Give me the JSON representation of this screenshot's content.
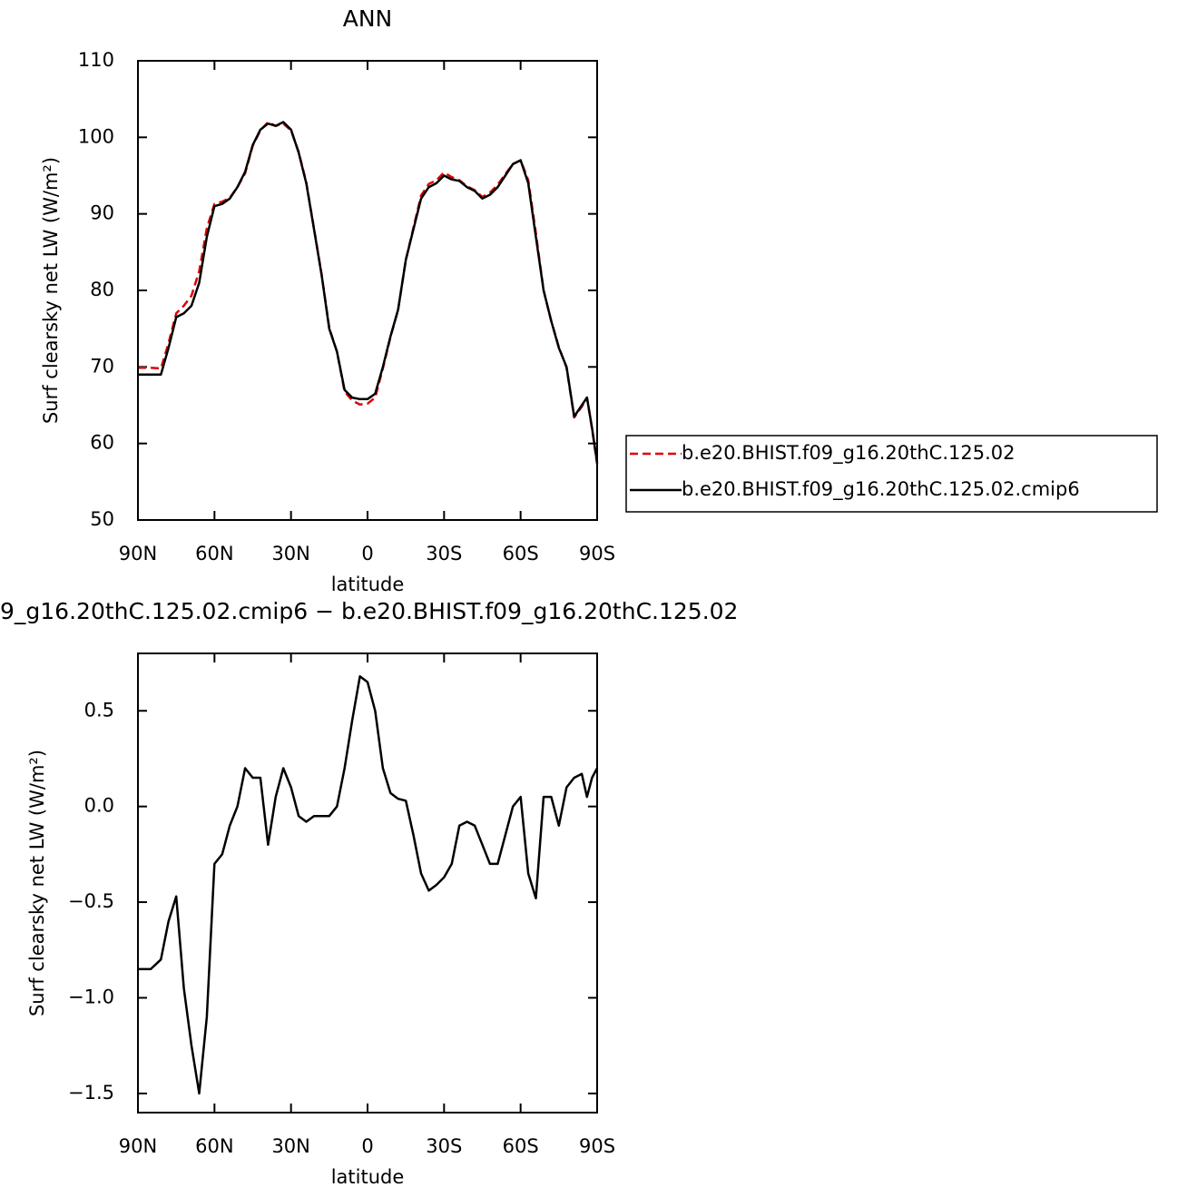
{
  "chart_data": [
    {
      "type": "line",
      "title": "ANN",
      "xlabel": "latitude",
      "ylabel": "Surf clearsky net LW (W/m²)",
      "x": [
        90,
        85,
        81,
        78,
        75,
        72,
        69,
        66,
        63,
        60,
        57,
        54,
        51,
        48,
        45,
        42,
        39,
        36,
        33,
        30,
        27,
        24,
        21,
        18,
        15,
        12,
        9,
        6,
        3,
        0,
        -3,
        -6,
        -9,
        -12,
        -15,
        -18,
        -21,
        -24,
        -27,
        -30,
        -33,
        -36,
        -39,
        -42,
        -45,
        -48,
        -51,
        -54,
        -57,
        -60,
        -63,
        -66,
        -69,
        -72,
        -75,
        -78,
        -81,
        -84,
        -86,
        -88,
        -90
      ],
      "xlim": [
        90,
        -90
      ],
      "xticks": [
        {
          "value": 90,
          "label": "90N"
        },
        {
          "value": 60,
          "label": "60N"
        },
        {
          "value": 30,
          "label": "30N"
        },
        0,
        {
          "value": -30,
          "label": "30S"
        },
        {
          "value": -60,
          "label": "60S"
        },
        {
          "value": -90,
          "label": "90S"
        }
      ],
      "ylim": [
        50,
        110
      ],
      "yticks": [
        50,
        60,
        70,
        80,
        90,
        100,
        110
      ],
      "legend": "right",
      "series": [
        {
          "name": "b.e20.BHIST.f09_g16.20thC.125.02",
          "color": "#e00000",
          "dash": true,
          "values": [
            69.9,
            69.9,
            69.8,
            73.1,
            77.0,
            78.0,
            79.3,
            82.5,
            88.1,
            91.3,
            91.6,
            92.1,
            93.5,
            95.3,
            98.9,
            100.9,
            102.0,
            101.5,
            101.8,
            100.9,
            98.1,
            94.1,
            88.1,
            82.1,
            75.1,
            72.0,
            66.8,
            65.6,
            65.1,
            65.2,
            66.0,
            69.8,
            73.9,
            77.5,
            84.0,
            88.2,
            92.4,
            93.9,
            94.4,
            95.4,
            94.8,
            94.4,
            93.6,
            93.1,
            92.2,
            92.8,
            93.8,
            95.2,
            96.5,
            97.0,
            94.4,
            87.5,
            80.0,
            76.0,
            72.6,
            69.9,
            63.4,
            64.8,
            66.0,
            61.9,
            57.3
          ]
        },
        {
          "name": "b.e20.BHIST.f09_g16.20thC.125.02.cmip6",
          "color": "#000000",
          "dash": false,
          "values": [
            69,
            69,
            69,
            72.5,
            76.5,
            77,
            78,
            81,
            87,
            91,
            91.3,
            92,
            93.5,
            95.5,
            99,
            101,
            101.8,
            101.5,
            102,
            101,
            98,
            94,
            88,
            82,
            75,
            72,
            67,
            66,
            65.8,
            65.8,
            66.5,
            70,
            74,
            77.5,
            84,
            88,
            92,
            93.5,
            94,
            95,
            94.5,
            94.3,
            93.5,
            93,
            92,
            92.5,
            93.5,
            95,
            96.5,
            97,
            94,
            87,
            80,
            76,
            72.5,
            70,
            63.5,
            65,
            66,
            62,
            57.5
          ]
        }
      ]
    },
    {
      "type": "line",
      "title": "9_g16.20thC.125.02.cmip6 − b.e20.BHIST.f09_g16.20thC.125.02",
      "xlabel": "latitude",
      "ylabel": "Surf clearsky net LW (W/m²)",
      "x": [
        90,
        85,
        81,
        78,
        75,
        72,
        69,
        66,
        63,
        60,
        57,
        54,
        51,
        48,
        45,
        42,
        39,
        36,
        33,
        30,
        27,
        24,
        21,
        18,
        15,
        12,
        9,
        6,
        3,
        0,
        -3,
        -6,
        -9,
        -12,
        -15,
        -18,
        -21,
        -24,
        -27,
        -30,
        -33,
        -36,
        -39,
        -42,
        -45,
        -48,
        -51,
        -54,
        -57,
        -60,
        -63,
        -66,
        -69,
        -72,
        -75,
        -78,
        -81,
        -84,
        -86,
        -88,
        -90
      ],
      "xlim": [
        90,
        -90
      ],
      "xticks": [
        {
          "value": 90,
          "label": "90N"
        },
        {
          "value": 60,
          "label": "60N"
        },
        {
          "value": 30,
          "label": "30N"
        },
        0,
        {
          "value": -30,
          "label": "30S"
        },
        {
          "value": -60,
          "label": "60S"
        },
        {
          "value": -90,
          "label": "90S"
        }
      ],
      "ylim": [
        -1.6,
        0.8
      ],
      "yticks": [
        {
          "value": -1.5,
          "label": "−1.5"
        },
        {
          "value": -1,
          "label": "−1.0"
        },
        {
          "value": -0.5,
          "label": "−0.5"
        },
        {
          "value": 0,
          "label": "0.0"
        },
        0.5
      ],
      "series": [
        {
          "color": "#000000",
          "dash": false,
          "values": [
            -0.85,
            -0.85,
            -0.8,
            -0.6,
            -0.47,
            -0.95,
            -1.25,
            -1.5,
            -1.1,
            -0.3,
            -0.25,
            -0.1,
            0,
            0.2,
            0.15,
            0.15,
            -0.2,
            0.05,
            0.2,
            0.1,
            -0.05,
            -0.08,
            -0.05,
            -0.05,
            -0.05,
            0,
            0.2,
            0.45,
            0.68,
            0.65,
            0.5,
            0.2,
            0.07,
            0.04,
            0.03,
            -0.15,
            -0.35,
            -0.44,
            -0.41,
            -0.37,
            -0.3,
            -0.1,
            -0.08,
            -0.1,
            -0.2,
            -0.3,
            -0.3,
            -0.15,
            0,
            0.05,
            -0.35,
            -0.48,
            0.05,
            0.05,
            -0.1,
            0.1,
            0.15,
            0.17,
            0.05,
            0.15,
            0.2
          ]
        }
      ]
    }
  ]
}
